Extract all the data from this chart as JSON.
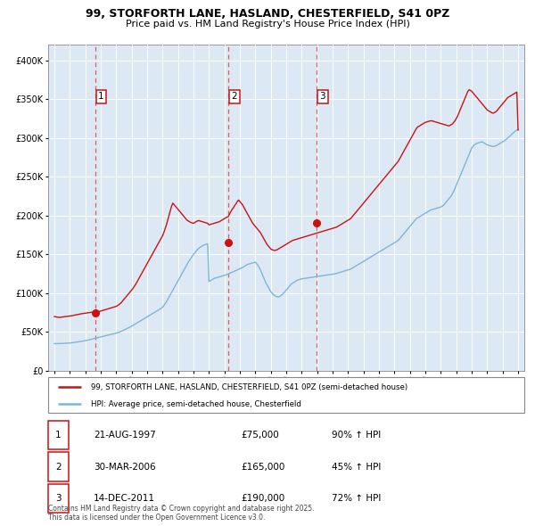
{
  "title": "99, STORFORTH LANE, HASLAND, CHESTERFIELD, S41 0PZ",
  "subtitle": "Price paid vs. HM Land Registry's House Price Index (HPI)",
  "ylim": [
    0,
    420000
  ],
  "yticks": [
    0,
    50000,
    100000,
    150000,
    200000,
    250000,
    300000,
    350000,
    400000
  ],
  "plot_bg_color": "#dce9f5",
  "hpi_color": "#7fb5d5",
  "price_color": "#cc1111",
  "dashed_line_color": "#dd4444",
  "purchases": [
    {
      "date_decimal": 1997.64,
      "price": 75000,
      "label": "1"
    },
    {
      "date_decimal": 2006.25,
      "price": 165000,
      "label": "2"
    },
    {
      "date_decimal": 2011.96,
      "price": 190000,
      "label": "3"
    }
  ],
  "legend_property_label": "99, STORFORTH LANE, HASLAND, CHESTERFIELD, S41 0PZ (semi-detached house)",
  "legend_hpi_label": "HPI: Average price, semi-detached house, Chesterfield",
  "table_entries": [
    {
      "num": "1",
      "date": "21-AUG-1997",
      "price": "£75,000",
      "change": "90% ↑ HPI"
    },
    {
      "num": "2",
      "date": "30-MAR-2006",
      "price": "£165,000",
      "change": "45% ↑ HPI"
    },
    {
      "num": "3",
      "date": "14-DEC-2011",
      "price": "£190,000",
      "change": "72% ↑ HPI"
    }
  ],
  "footer": "Contains HM Land Registry data © Crown copyright and database right 2025.\nThis data is licensed under the Open Government Licence v3.0.",
  "hpi_dates": [
    1995.0,
    1995.083,
    1995.167,
    1995.25,
    1995.333,
    1995.417,
    1995.5,
    1995.583,
    1995.667,
    1995.75,
    1995.833,
    1995.917,
    1996.0,
    1996.083,
    1996.167,
    1996.25,
    1996.333,
    1996.417,
    1996.5,
    1996.583,
    1996.667,
    1996.75,
    1996.833,
    1996.917,
    1997.0,
    1997.083,
    1997.167,
    1997.25,
    1997.333,
    1997.417,
    1997.5,
    1997.583,
    1997.667,
    1997.75,
    1997.833,
    1997.917,
    1998.0,
    1998.083,
    1998.167,
    1998.25,
    1998.333,
    1998.417,
    1998.5,
    1998.583,
    1998.667,
    1998.75,
    1998.833,
    1998.917,
    1999.0,
    1999.083,
    1999.167,
    1999.25,
    1999.333,
    1999.417,
    1999.5,
    1999.583,
    1999.667,
    1999.75,
    1999.833,
    1999.917,
    2000.0,
    2000.083,
    2000.167,
    2000.25,
    2000.333,
    2000.417,
    2000.5,
    2000.583,
    2000.667,
    2000.75,
    2000.833,
    2000.917,
    2001.0,
    2001.083,
    2001.167,
    2001.25,
    2001.333,
    2001.417,
    2001.5,
    2001.583,
    2001.667,
    2001.75,
    2001.833,
    2001.917,
    2002.0,
    2002.083,
    2002.167,
    2002.25,
    2002.333,
    2002.417,
    2002.5,
    2002.583,
    2002.667,
    2002.75,
    2002.833,
    2002.917,
    2003.0,
    2003.083,
    2003.167,
    2003.25,
    2003.333,
    2003.417,
    2003.5,
    2003.583,
    2003.667,
    2003.75,
    2003.833,
    2003.917,
    2004.0,
    2004.083,
    2004.167,
    2004.25,
    2004.333,
    2004.417,
    2004.5,
    2004.583,
    2004.667,
    2004.75,
    2004.833,
    2004.917,
    2005.0,
    2005.083,
    2005.167,
    2005.25,
    2005.333,
    2005.417,
    2005.5,
    2005.583,
    2005.667,
    2005.75,
    2005.833,
    2005.917,
    2006.0,
    2006.083,
    2006.167,
    2006.25,
    2006.333,
    2006.417,
    2006.5,
    2006.583,
    2006.667,
    2006.75,
    2006.833,
    2006.917,
    2007.0,
    2007.083,
    2007.167,
    2007.25,
    2007.333,
    2007.417,
    2007.5,
    2007.583,
    2007.667,
    2007.75,
    2007.833,
    2007.917,
    2008.0,
    2008.083,
    2008.167,
    2008.25,
    2008.333,
    2008.417,
    2008.5,
    2008.583,
    2008.667,
    2008.75,
    2008.833,
    2008.917,
    2009.0,
    2009.083,
    2009.167,
    2009.25,
    2009.333,
    2009.417,
    2009.5,
    2009.583,
    2009.667,
    2009.75,
    2009.833,
    2009.917,
    2010.0,
    2010.083,
    2010.167,
    2010.25,
    2010.333,
    2010.417,
    2010.5,
    2010.583,
    2010.667,
    2010.75,
    2010.833,
    2010.917,
    2011.0,
    2011.083,
    2011.167,
    2011.25,
    2011.333,
    2011.417,
    2011.5,
    2011.583,
    2011.667,
    2011.75,
    2011.833,
    2011.917,
    2012.0,
    2012.083,
    2012.167,
    2012.25,
    2012.333,
    2012.417,
    2012.5,
    2012.583,
    2012.667,
    2012.75,
    2012.833,
    2012.917,
    2013.0,
    2013.083,
    2013.167,
    2013.25,
    2013.333,
    2013.417,
    2013.5,
    2013.583,
    2013.667,
    2013.75,
    2013.833,
    2013.917,
    2014.0,
    2014.083,
    2014.167,
    2014.25,
    2014.333,
    2014.417,
    2014.5,
    2014.583,
    2014.667,
    2014.75,
    2014.833,
    2014.917,
    2015.0,
    2015.083,
    2015.167,
    2015.25,
    2015.333,
    2015.417,
    2015.5,
    2015.583,
    2015.667,
    2015.75,
    2015.833,
    2015.917,
    2016.0,
    2016.083,
    2016.167,
    2016.25,
    2016.333,
    2016.417,
    2016.5,
    2016.583,
    2016.667,
    2016.75,
    2016.833,
    2016.917,
    2017.0,
    2017.083,
    2017.167,
    2017.25,
    2017.333,
    2017.417,
    2017.5,
    2017.583,
    2017.667,
    2017.75,
    2017.833,
    2017.917,
    2018.0,
    2018.083,
    2018.167,
    2018.25,
    2018.333,
    2018.417,
    2018.5,
    2018.583,
    2018.667,
    2018.75,
    2018.833,
    2018.917,
    2019.0,
    2019.083,
    2019.167,
    2019.25,
    2019.333,
    2019.417,
    2019.5,
    2019.583,
    2019.667,
    2019.75,
    2019.833,
    2019.917,
    2020.0,
    2020.083,
    2020.167,
    2020.25,
    2020.333,
    2020.417,
    2020.5,
    2020.583,
    2020.667,
    2020.75,
    2020.833,
    2020.917,
    2021.0,
    2021.083,
    2021.167,
    2021.25,
    2021.333,
    2021.417,
    2021.5,
    2021.583,
    2021.667,
    2021.75,
    2021.833,
    2021.917,
    2022.0,
    2022.083,
    2022.167,
    2022.25,
    2022.333,
    2022.417,
    2022.5,
    2022.583,
    2022.667,
    2022.75,
    2022.833,
    2022.917,
    2023.0,
    2023.083,
    2023.167,
    2023.25,
    2023.333,
    2023.417,
    2023.5,
    2023.583,
    2023.667,
    2023.75,
    2023.833,
    2023.917,
    2024.0,
    2024.083,
    2024.167,
    2024.25,
    2024.333,
    2024.417,
    2024.5,
    2024.583,
    2024.667,
    2024.75,
    2024.833,
    2024.917,
    2025.0
  ],
  "hpi_values": [
    35000,
    35100,
    35000,
    35100,
    35200,
    35300,
    35200,
    35300,
    35400,
    35500,
    35600,
    35700,
    35800,
    36000,
    36200,
    36500,
    36700,
    37000,
    37200,
    37500,
    37800,
    38000,
    38300,
    38600,
    39000,
    39300,
    39600,
    40000,
    40400,
    40800,
    41200,
    41600,
    42000,
    42400,
    42800,
    43200,
    43600,
    44000,
    44400,
    44800,
    45200,
    45600,
    46000,
    46400,
    46800,
    47200,
    47600,
    48000,
    48500,
    49000,
    49500,
    50200,
    51000,
    51800,
    52600,
    53400,
    54200,
    55000,
    55800,
    56600,
    57500,
    58500,
    59500,
    60500,
    61500,
    62500,
    63500,
    64500,
    65500,
    66500,
    67500,
    68500,
    69500,
    70500,
    71500,
    72500,
    73500,
    74500,
    75500,
    76500,
    77500,
    78500,
    79500,
    80500,
    82000,
    84000,
    86500,
    89000,
    92000,
    95000,
    98000,
    101000,
    104000,
    107000,
    110000,
    113000,
    116000,
    119000,
    122000,
    125000,
    128000,
    131000,
    134000,
    137000,
    140000,
    142500,
    145000,
    147500,
    150000,
    152000,
    154000,
    156000,
    157500,
    159000,
    160000,
    161000,
    162000,
    162500,
    163000,
    163500,
    115000,
    116000,
    117000,
    118000,
    119000,
    119500,
    120000,
    120500,
    121000,
    121500,
    122000,
    122500,
    123000,
    123500,
    124000,
    124800,
    125500,
    126200,
    127000,
    127800,
    128500,
    129200,
    130000,
    130800,
    131500,
    132200,
    133000,
    134000,
    135000,
    136000,
    137000,
    137500,
    138000,
    138500,
    139000,
    139500,
    140000,
    138000,
    136000,
    133000,
    130000,
    126000,
    122000,
    118000,
    114000,
    111000,
    108000,
    105000,
    102000,
    100000,
    98500,
    97000,
    96000,
    95500,
    95000,
    96000,
    97000,
    98500,
    100000,
    102000,
    104000,
    106000,
    108000,
    110000,
    112000,
    113000,
    114000,
    115000,
    116000,
    117000,
    117500,
    118000,
    118500,
    118800,
    119000,
    119200,
    119500,
    119800,
    120000,
    120200,
    120500,
    120800,
    121000,
    121200,
    121500,
    121700,
    122000,
    122200,
    122500,
    122700,
    123000,
    123200,
    123500,
    123700,
    124000,
    124200,
    124500,
    124700,
    125000,
    125500,
    126000,
    126500,
    127000,
    127500,
    128000,
    128500,
    129000,
    129500,
    130000,
    130500,
    131000,
    132000,
    133000,
    134000,
    135000,
    136000,
    137000,
    138000,
    139000,
    140000,
    141000,
    142000,
    143000,
    144000,
    145000,
    146000,
    147000,
    148000,
    149000,
    150000,
    151000,
    152000,
    153000,
    154000,
    155000,
    156000,
    157000,
    158000,
    159000,
    160000,
    161000,
    162000,
    163000,
    164000,
    165000,
    166000,
    167000,
    168000,
    170000,
    172000,
    174000,
    176000,
    178000,
    180000,
    182000,
    184000,
    186000,
    188000,
    190000,
    192000,
    194000,
    196000,
    197000,
    198000,
    199000,
    200000,
    201000,
    202000,
    203000,
    204000,
    205000,
    206000,
    207000,
    207500,
    208000,
    208500,
    209000,
    209500,
    210000,
    210500,
    211000,
    212000,
    213000,
    215000,
    217000,
    219000,
    221000,
    223000,
    225000,
    228000,
    231000,
    235000,
    239000,
    243000,
    247000,
    251000,
    255000,
    259000,
    263000,
    267000,
    271000,
    275000,
    279000,
    283000,
    287000,
    289000,
    291000,
    292000,
    293000,
    293500,
    294000,
    294500,
    295000,
    294000,
    293000,
    292000,
    291000,
    290500,
    290000,
    289500,
    289000,
    289000,
    289500,
    290000,
    291000,
    292000,
    293000,
    294000,
    295000,
    296000,
    297000,
    298500,
    300000,
    301500,
    303000,
    304500,
    306000,
    307500,
    309000,
    310000,
    311000
  ],
  "red_dates": [
    1995.0,
    1995.083,
    1995.167,
    1995.25,
    1995.333,
    1995.417,
    1995.5,
    1995.583,
    1995.667,
    1995.75,
    1995.833,
    1995.917,
    1996.0,
    1996.083,
    1996.167,
    1996.25,
    1996.333,
    1996.417,
    1996.5,
    1996.583,
    1996.667,
    1996.75,
    1996.833,
    1996.917,
    1997.0,
    1997.083,
    1997.167,
    1997.25,
    1997.333,
    1997.417,
    1997.5,
    1997.583,
    1997.64,
    1997.75,
    1997.833,
    1997.917,
    1998.0,
    1998.083,
    1998.167,
    1998.25,
    1998.333,
    1998.417,
    1998.5,
    1998.583,
    1998.667,
    1998.75,
    1998.833,
    1998.917,
    1999.0,
    1999.083,
    1999.167,
    1999.25,
    1999.333,
    1999.417,
    1999.5,
    1999.583,
    1999.667,
    1999.75,
    1999.833,
    1999.917,
    2000.0,
    2000.083,
    2000.167,
    2000.25,
    2000.333,
    2000.417,
    2000.5,
    2000.583,
    2000.667,
    2000.75,
    2000.833,
    2000.917,
    2001.0,
    2001.083,
    2001.167,
    2001.25,
    2001.333,
    2001.417,
    2001.5,
    2001.583,
    2001.667,
    2001.75,
    2001.833,
    2001.917,
    2002.0,
    2002.083,
    2002.167,
    2002.25,
    2002.333,
    2002.417,
    2002.5,
    2002.583,
    2002.667,
    2002.75,
    2002.833,
    2002.917,
    2003.0,
    2003.083,
    2003.167,
    2003.25,
    2003.333,
    2003.417,
    2003.5,
    2003.583,
    2003.667,
    2003.75,
    2003.833,
    2003.917,
    2004.0,
    2004.083,
    2004.167,
    2004.25,
    2004.333,
    2004.417,
    2004.5,
    2004.583,
    2004.667,
    2004.75,
    2004.833,
    2004.917,
    2005.0,
    2005.083,
    2005.167,
    2005.25,
    2005.333,
    2005.417,
    2005.5,
    2005.583,
    2005.667,
    2005.75,
    2005.833,
    2005.917,
    2006.0,
    2006.083,
    2006.167,
    2006.25,
    2006.333,
    2006.417,
    2006.5,
    2006.583,
    2006.667,
    2006.75,
    2006.833,
    2006.917,
    2007.0,
    2007.083,
    2007.167,
    2007.25,
    2007.333,
    2007.417,
    2007.5,
    2007.583,
    2007.667,
    2007.75,
    2007.833,
    2007.917,
    2008.0,
    2008.083,
    2008.167,
    2008.25,
    2008.333,
    2008.417,
    2008.5,
    2008.583,
    2008.667,
    2008.75,
    2008.833,
    2008.917,
    2009.0,
    2009.083,
    2009.167,
    2009.25,
    2009.333,
    2009.417,
    2009.5,
    2009.583,
    2009.667,
    2009.75,
    2009.833,
    2009.917,
    2010.0,
    2010.083,
    2010.167,
    2010.25,
    2010.333,
    2010.417,
    2010.5,
    2010.583,
    2010.667,
    2010.75,
    2010.833,
    2010.917,
    2011.0,
    2011.083,
    2011.167,
    2011.25,
    2011.333,
    2011.417,
    2011.5,
    2011.583,
    2011.667,
    2011.75,
    2011.833,
    2011.917,
    2012.0,
    2012.083,
    2012.167,
    2012.25,
    2012.333,
    2012.417,
    2012.5,
    2012.583,
    2012.667,
    2012.75,
    2012.833,
    2012.917,
    2013.0,
    2013.083,
    2013.167,
    2013.25,
    2013.333,
    2013.417,
    2013.5,
    2013.583,
    2013.667,
    2013.75,
    2013.833,
    2013.917,
    2014.0,
    2014.083,
    2014.167,
    2014.25,
    2014.333,
    2014.417,
    2014.5,
    2014.583,
    2014.667,
    2014.75,
    2014.833,
    2014.917,
    2015.0,
    2015.083,
    2015.167,
    2015.25,
    2015.333,
    2015.417,
    2015.5,
    2015.583,
    2015.667,
    2015.75,
    2015.833,
    2015.917,
    2016.0,
    2016.083,
    2016.167,
    2016.25,
    2016.333,
    2016.417,
    2016.5,
    2016.583,
    2016.667,
    2016.75,
    2016.833,
    2016.917,
    2017.0,
    2017.083,
    2017.167,
    2017.25,
    2017.333,
    2017.417,
    2017.5,
    2017.583,
    2017.667,
    2017.75,
    2017.833,
    2017.917,
    2018.0,
    2018.083,
    2018.167,
    2018.25,
    2018.333,
    2018.417,
    2018.5,
    2018.583,
    2018.667,
    2018.75,
    2018.833,
    2018.917,
    2019.0,
    2019.083,
    2019.167,
    2019.25,
    2019.333,
    2019.417,
    2019.5,
    2019.583,
    2019.667,
    2019.75,
    2019.833,
    2019.917,
    2020.0,
    2020.083,
    2020.167,
    2020.25,
    2020.333,
    2020.417,
    2020.5,
    2020.583,
    2020.667,
    2020.75,
    2020.833,
    2020.917,
    2021.0,
    2021.083,
    2021.167,
    2021.25,
    2021.333,
    2021.417,
    2021.5,
    2021.583,
    2021.667,
    2021.75,
    2021.833,
    2021.917,
    2022.0,
    2022.083,
    2022.167,
    2022.25,
    2022.333,
    2022.417,
    2022.5,
    2022.583,
    2022.667,
    2022.75,
    2022.833,
    2022.917,
    2023.0,
    2023.083,
    2023.167,
    2023.25,
    2023.333,
    2023.417,
    2023.5,
    2023.583,
    2023.667,
    2023.75,
    2023.833,
    2023.917,
    2024.0,
    2024.083,
    2024.167,
    2024.25,
    2024.333,
    2024.417,
    2024.5,
    2024.583,
    2024.667,
    2024.75,
    2024.833,
    2024.917,
    2025.0
  ],
  "red_values": [
    70000,
    69500,
    69200,
    69000,
    68800,
    69000,
    69200,
    69500,
    69800,
    70000,
    70200,
    70500,
    70500,
    70800,
    71000,
    71500,
    71800,
    72200,
    72500,
    72800,
    73200,
    73500,
    73800,
    74000,
    74200,
    74500,
    74800,
    75000,
    75200,
    75400,
    75200,
    75300,
    75000,
    75500,
    76000,
    76500,
    77000,
    77500,
    78000,
    78500,
    79000,
    79500,
    80000,
    80500,
    81000,
    81500,
    82000,
    82500,
    83000,
    84000,
    85000,
    86500,
    88000,
    90000,
    92000,
    94000,
    96000,
    98000,
    100000,
    102000,
    104000,
    106000,
    108500,
    111000,
    114000,
    117000,
    120000,
    123000,
    126000,
    129000,
    132000,
    135000,
    138000,
    141000,
    144000,
    147000,
    150000,
    153000,
    156000,
    159000,
    162000,
    165000,
    168000,
    171000,
    174000,
    178000,
    183000,
    188000,
    194000,
    200000,
    206000,
    212000,
    216000,
    214000,
    212000,
    210000,
    208000,
    206000,
    204000,
    202000,
    200000,
    198000,
    196000,
    194000,
    193000,
    192000,
    191000,
    190500,
    190000,
    191000,
    192000,
    193000,
    193500,
    193000,
    192500,
    192000,
    191500,
    191000,
    190500,
    190000,
    188000,
    188500,
    189000,
    189500,
    190000,
    190500,
    191000,
    191500,
    192000,
    193000,
    194000,
    195000,
    196000,
    197000,
    198000,
    198500,
    202000,
    205000,
    208000,
    210000,
    213000,
    215000,
    218000,
    220000,
    218000,
    216000,
    214000,
    211000,
    208000,
    205000,
    202000,
    199000,
    196000,
    193000,
    190000,
    188000,
    186000,
    184000,
    182000,
    180000,
    178000,
    175000,
    172000,
    169000,
    166000,
    163000,
    161000,
    159000,
    157000,
    156000,
    155500,
    155000,
    155500,
    156000,
    157000,
    158000,
    159000,
    160000,
    161000,
    162000,
    163000,
    164000,
    165000,
    166000,
    167000,
    168000,
    168500,
    169000,
    169500,
    170000,
    170500,
    171000,
    171500,
    172000,
    172500,
    173000,
    173500,
    174000,
    174500,
    175000,
    175500,
    176000,
    176500,
    177000,
    177500,
    178000,
    178500,
    179000,
    179500,
    180000,
    180500,
    181000,
    181500,
    182000,
    182500,
    183000,
    183500,
    184000,
    184500,
    185000,
    186000,
    187000,
    188000,
    189000,
    190000,
    191000,
    192000,
    193000,
    194000,
    195000,
    196000,
    198000,
    200000,
    202000,
    204000,
    206000,
    208000,
    210000,
    212000,
    214000,
    216000,
    218000,
    220000,
    222000,
    224000,
    226000,
    228000,
    230000,
    232000,
    234000,
    236000,
    238000,
    240000,
    242000,
    244000,
    246000,
    248000,
    250000,
    252000,
    254000,
    256000,
    258000,
    260000,
    262000,
    264000,
    266000,
    268000,
    270000,
    273000,
    276000,
    279000,
    282000,
    285000,
    288000,
    291000,
    294000,
    297000,
    300000,
    303000,
    306000,
    309000,
    312000,
    314000,
    315000,
    316000,
    317000,
    318000,
    319000,
    320000,
    320500,
    321000,
    321500,
    322000,
    322000,
    321500,
    321000,
    320500,
    320000,
    319500,
    319000,
    318500,
    318000,
    317500,
    317000,
    316500,
    316000,
    315500,
    316000,
    317000,
    318000,
    320000,
    322000,
    325000,
    328000,
    332000,
    336000,
    340000,
    344000,
    348000,
    352000,
    356000,
    360000,
    362000,
    361000,
    360000,
    358000,
    356000,
    354000,
    352000,
    350000,
    348000,
    346000,
    344000,
    342000,
    340000,
    338000,
    336000,
    335000,
    334000,
    333000,
    332000,
    332000,
    333000,
    334000,
    336000,
    338000,
    340000,
    342000,
    344000,
    346000,
    348000,
    350000,
    352000,
    353000,
    354000,
    355000,
    356000,
    357000,
    358000,
    359000,
    310000
  ]
}
